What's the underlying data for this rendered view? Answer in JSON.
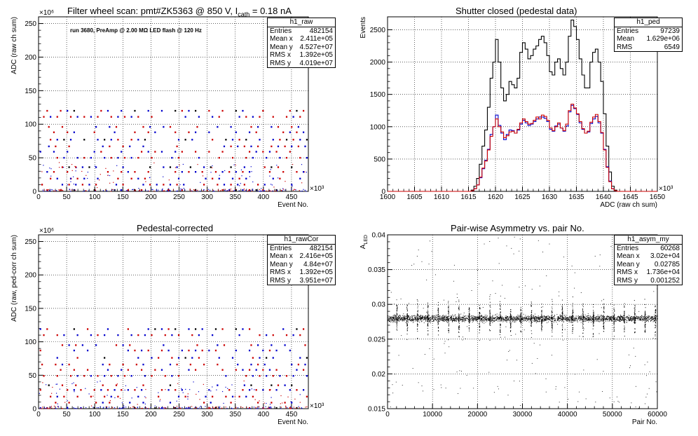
{
  "chart_data": [
    {
      "type": "scatter",
      "title": "Filter wheel scan: pmt#ZK5363 @  850 V, I",
      "title_sub": "cath",
      "title_tail": " = 0.18 nA",
      "annotation": "run 3680, PreAmp @ 2.00 MΩ LED flash @  120 Hz",
      "xlabel": "Event No.",
      "ylabel": "ADC (raw ch sum)",
      "x_multiplier": "×10³",
      "y_multiplier": "×10⁶",
      "xlim": [
        0,
        480
      ],
      "ylim": [
        0,
        260
      ],
      "x_ticks": [
        0,
        50,
        100,
        150,
        200,
        250,
        300,
        350,
        400,
        450
      ],
      "y_ticks": [
        0,
        50,
        100,
        150,
        200,
        250
      ],
      "grid": true,
      "colors": {
        "series_a": "#0000cc",
        "series_b": "#cc0000",
        "series_c": "#000000"
      },
      "levels": [
        2,
        10,
        19,
        29,
        36,
        50,
        59,
        67,
        77,
        88,
        96,
        111,
        120
      ],
      "stats": {
        "name": "h1_raw",
        "rows": [
          {
            "k": "Entries",
            "v": "482154"
          },
          {
            "k": "Mean x",
            "v": "2.411e+05"
          },
          {
            "k": "Mean y",
            "v": "4.527e+07"
          },
          {
            "k": "RMS x",
            "v": "1.392e+05"
          },
          {
            "k": "RMS y",
            "v": "4.019e+07"
          }
        ]
      }
    },
    {
      "type": "histogram",
      "title": "Shutter closed (pedestal data)",
      "xlabel": "ADC (raw ch sum)",
      "ylabel": "Events",
      "x_multiplier": "×10³",
      "xlim": [
        1600,
        1650
      ],
      "ylim": [
        0,
        2700
      ],
      "x_ticks": [
        1600,
        1605,
        1610,
        1615,
        1620,
        1625,
        1630,
        1635,
        1640,
        1645,
        1650
      ],
      "y_ticks": [
        0,
        500,
        1000,
        1500,
        2000,
        2500
      ],
      "grid": true,
      "bin_start": 1615,
      "bin_width": 0.5,
      "series": [
        {
          "color": "#000000",
          "values": [
            0,
            20,
            80,
            200,
            420,
            700,
            950,
            1300,
            1750,
            2000,
            2350,
            2000,
            1600,
            1400,
            1500,
            1700,
            1650,
            1600,
            1750,
            2150,
            2300,
            2200,
            2050,
            2100,
            2200,
            2250,
            2350,
            2400,
            2300,
            2100,
            1850,
            1800,
            2000,
            2050,
            1900,
            1800,
            2000,
            2400,
            2650,
            2550,
            2350,
            2050,
            1800,
            1600,
            1600,
            2000,
            2150,
            2200,
            2000,
            1700,
            1200,
            700,
            300,
            80,
            20
          ]
        },
        {
          "color": "#0000cc",
          "values": [
            0,
            10,
            40,
            100,
            210,
            350,
            480,
            650,
            880,
            1000,
            1180,
            1020,
            900,
            800,
            880,
            950,
            940,
            900,
            950,
            1040,
            1100,
            1060,
            1020,
            1040,
            1080,
            1120,
            1150,
            1150,
            1130,
            1080,
            960,
            930,
            1010,
            1040,
            980,
            930,
            1010,
            1230,
            1330,
            1280,
            1190,
            1060,
            960,
            900,
            920,
            1050,
            1120,
            1160,
            1060,
            900,
            650,
            380,
            160,
            40,
            10
          ]
        },
        {
          "color": "#cc0000",
          "values": [
            0,
            10,
            40,
            100,
            220,
            360,
            470,
            640,
            850,
            1000,
            1120,
            1000,
            920,
            830,
            860,
            920,
            930,
            900,
            960,
            1060,
            1120,
            1080,
            1040,
            1050,
            1100,
            1150,
            1120,
            1180,
            1160,
            1100,
            980,
            940,
            1000,
            1060,
            980,
            940,
            1040,
            1250,
            1350,
            1290,
            1200,
            1080,
            970,
            900,
            930,
            1070,
            1150,
            1190,
            1080,
            910,
            640,
            370,
            150,
            40,
            10
          ]
        }
      ],
      "stats": {
        "name": "h1_ped",
        "rows": [
          {
            "k": "Entries",
            "v": "97239"
          },
          {
            "k": "Mean",
            "v": "1.629e+06"
          },
          {
            "k": "RMS",
            "v": "6549"
          }
        ]
      }
    },
    {
      "type": "scatter",
      "title": "Pedestal-corrected",
      "xlabel": "Event No.",
      "ylabel": "ADC (raw, ped-corr ch sum)",
      "x_multiplier": "×10³",
      "y_multiplier": "×10⁶",
      "xlim": [
        0,
        480
      ],
      "ylim": [
        0,
        260
      ],
      "x_ticks": [
        0,
        50,
        100,
        150,
        200,
        250,
        300,
        350,
        400,
        450
      ],
      "y_ticks": [
        0,
        50,
        100,
        150,
        200,
        250
      ],
      "grid": true,
      "colors": {
        "series_a": "#0000cc",
        "series_b": "#cc0000",
        "series_c": "#000000"
      },
      "levels": [
        1,
        9,
        18,
        28,
        35,
        49,
        58,
        66,
        76,
        87,
        95,
        110,
        119
      ],
      "stats": {
        "name": "h1_rawCor",
        "rows": [
          {
            "k": "Entries",
            "v": "482154"
          },
          {
            "k": "Mean x",
            "v": "2.416e+05"
          },
          {
            "k": "Mean y",
            "v": "4.84e+07"
          },
          {
            "k": "RMS x",
            "v": "1.392e+05"
          },
          {
            "k": "RMS y",
            "v": "3.951e+07"
          }
        ]
      }
    },
    {
      "type": "scatter",
      "title": "Pair-wise Asymmetry vs. pair No.",
      "xlabel": "Pair No.",
      "ylabel": "A",
      "ylabel_sub": "LED",
      "xlim": [
        0,
        60000
      ],
      "ylim": [
        0.015,
        0.04
      ],
      "x_ticks": [
        0,
        10000,
        20000,
        30000,
        40000,
        50000,
        60000
      ],
      "y_ticks": [
        0.015,
        0.02,
        0.025,
        0.03,
        0.035,
        0.04
      ],
      "grid": true,
      "band_center": 0.028,
      "band_halfwidth": 0.0005,
      "colors": {
        "points": "#000000"
      },
      "stats": {
        "name": "h1_asym_my",
        "rows": [
          {
            "k": "Entries",
            "v": "60268"
          },
          {
            "k": "Mean x",
            "v": "3.02e+04"
          },
          {
            "k": "Mean y",
            "v": "0.02785"
          },
          {
            "k": "RMS x",
            "v": "1.736e+04"
          },
          {
            "k": "RMS y",
            "v": "0.001252"
          }
        ]
      }
    }
  ]
}
